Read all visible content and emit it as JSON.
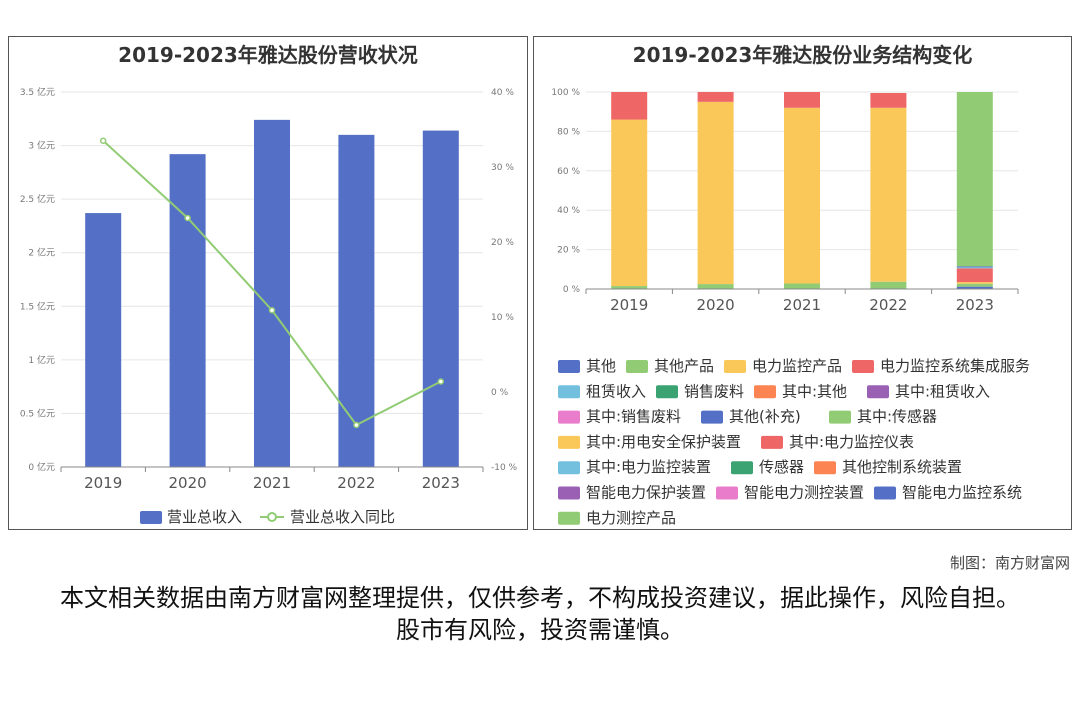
{
  "left_chart": {
    "title": "2019-2023年雅达股份营收状况",
    "legend": {
      "bar_label": "营业总收入",
      "line_label": "营业总收入同比"
    }
  },
  "right_chart": {
    "title": "2019-2023年雅达股份业务结构变化"
  },
  "footer": {
    "credit": "制图：南方财富网",
    "disclaimer": "本文相关数据由南方财富网整理提供，仅供参考，不构成投资建议，据此操作，风险自担。股市有风险，投资需谨慎。"
  },
  "chart_data": [
    {
      "type": "bar",
      "title": "2019-2023年雅达股份营收状况",
      "categories": [
        "2019",
        "2020",
        "2021",
        "2022",
        "2023"
      ],
      "y_ticks": [
        "0 亿元",
        "0.5 亿元",
        "1 亿元",
        "1.5 亿元",
        "2 亿元",
        "2.5 亿元",
        "3 亿元",
        "3.5 亿元"
      ],
      "y2_ticks": [
        "-10 %",
        "0 %",
        "10 %",
        "20 %",
        "30 %",
        "40 %"
      ],
      "ylim": [
        0,
        3.5
      ],
      "y2lim": [
        -10,
        40
      ],
      "grid": true,
      "legend_position": "bottom",
      "series": [
        {
          "name": "营业总收入",
          "type": "bar",
          "axis": "left",
          "color": "#5470c6",
          "values": [
            2.37,
            2.92,
            3.24,
            3.1,
            3.14
          ]
        },
        {
          "name": "营业总收入同比",
          "type": "line",
          "axis": "right",
          "color": "#91cc75",
          "values": [
            33.5,
            23.2,
            10.9,
            -4.4,
            1.4
          ]
        }
      ]
    },
    {
      "type": "bar",
      "stacked": true,
      "title": "2019-2023年雅达股份业务结构变化",
      "categories": [
        "2019",
        "2020",
        "2021",
        "2022",
        "2023"
      ],
      "y_ticks": [
        "0 %",
        "20 %",
        "40 %",
        "60 %",
        "80 %",
        "100 %"
      ],
      "ylim": [
        0,
        100
      ],
      "grid": true,
      "legend_position": "bottom",
      "series": [
        {
          "name": "其他",
          "color": "#5470c6",
          "values": [
            0,
            0,
            0,
            0,
            0
          ]
        },
        {
          "name": "其他产品",
          "color": "#91cc75",
          "values": [
            1.5,
            2.5,
            2.8,
            3.7,
            0
          ]
        },
        {
          "name": "电力监控产品",
          "color": "#fac858",
          "values": [
            84.5,
            92.5,
            89.2,
            88.3,
            0
          ]
        },
        {
          "name": "电力监控系统集成服务",
          "color": "#ee6666",
          "values": [
            14,
            5,
            8,
            7.5,
            0
          ]
        },
        {
          "name": "租赁收入",
          "color": "#73c0de",
          "values": [
            0,
            0,
            0,
            0,
            0
          ]
        },
        {
          "name": "销售废料",
          "color": "#3ba272",
          "values": [
            0,
            0,
            0,
            0,
            0
          ]
        },
        {
          "name": "其中:其他",
          "color": "#fc8452",
          "values": [
            0,
            0,
            0,
            0,
            0
          ]
        },
        {
          "name": "其中:租赁收入",
          "color": "#9a60b4",
          "values": [
            0,
            0,
            0,
            0,
            0
          ]
        },
        {
          "name": "其中:销售废料",
          "color": "#ea7ccc",
          "values": [
            0,
            0,
            0,
            0,
            0
          ]
        },
        {
          "name": "其他(补充)",
          "color": "#5470c6",
          "values": [
            0,
            0,
            0,
            0,
            1.2
          ]
        },
        {
          "name": "其中:传感器",
          "color": "#91cc75",
          "values": [
            0,
            0,
            0,
            0,
            1.5
          ]
        },
        {
          "name": "其中:用电安全保护装置",
          "color": "#fac858",
          "values": [
            0,
            0,
            0,
            0,
            0.8
          ]
        },
        {
          "name": "其中:电力监控仪表",
          "color": "#ee6666",
          "values": [
            0,
            0,
            0,
            0,
            7
          ]
        },
        {
          "name": "其中:电力监控装置",
          "color": "#73c0de",
          "values": [
            0,
            0,
            0,
            0,
            0.5
          ]
        },
        {
          "name": "传感器",
          "color": "#3ba272",
          "values": [
            0,
            0,
            0,
            0,
            0
          ]
        },
        {
          "name": "其他控制系统装置",
          "color": "#fc8452",
          "values": [
            0,
            0,
            0,
            0,
            0
          ]
        },
        {
          "name": "智能电力保护装置",
          "color": "#9a60b4",
          "values": [
            0,
            0,
            0,
            0,
            0
          ]
        },
        {
          "name": "智能电力测控装置",
          "color": "#ea7ccc",
          "values": [
            0,
            0,
            0,
            0,
            0
          ]
        },
        {
          "name": "智能电力监控系统",
          "color": "#5470c6",
          "values": [
            0,
            0,
            0,
            0,
            0.5
          ]
        },
        {
          "name": "电力测控产品",
          "color": "#91cc75",
          "values": [
            0,
            0,
            0,
            0,
            88.5
          ]
        }
      ]
    }
  ]
}
